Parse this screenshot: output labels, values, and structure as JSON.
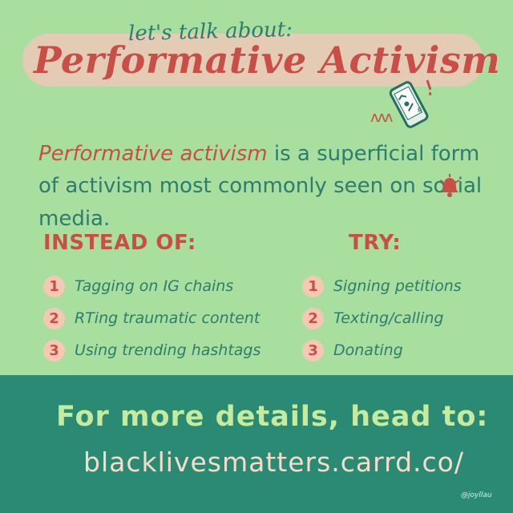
{
  "header": {
    "kicker": "let's talk about:",
    "title": "Performative Activism"
  },
  "intro": {
    "emphasis": "Performative activism",
    "text": " is a superficial form of activism most commonly seen on social media."
  },
  "columns": {
    "instead_of": {
      "heading": "INSTEAD OF:",
      "items": [
        {
          "number": "1",
          "text": "Tagging on IG chains"
        },
        {
          "number": "2",
          "text": "RTing traumatic content"
        },
        {
          "number": "3",
          "text": "Using trending hashtags"
        }
      ]
    },
    "try": {
      "heading": "TRY:",
      "items": [
        {
          "number": "1",
          "text": "Signing petitions"
        },
        {
          "number": "2",
          "text": "Texting/calling"
        },
        {
          "number": "3",
          "text": "Donating"
        }
      ]
    }
  },
  "footer": {
    "title": "For more details, head to:",
    "link": "blacklivesmatters.carrd.co/",
    "credit": "@joyllau"
  },
  "icons": {
    "phone": "phone-icon",
    "bell": "bell-icon",
    "wave": "scribble-icon"
  },
  "colors": {
    "background": "#a8de9e",
    "bottom": "#2b8a74",
    "red": "#c94e45",
    "teal": "#2c7d6d",
    "peach": "#f4c8b5"
  }
}
